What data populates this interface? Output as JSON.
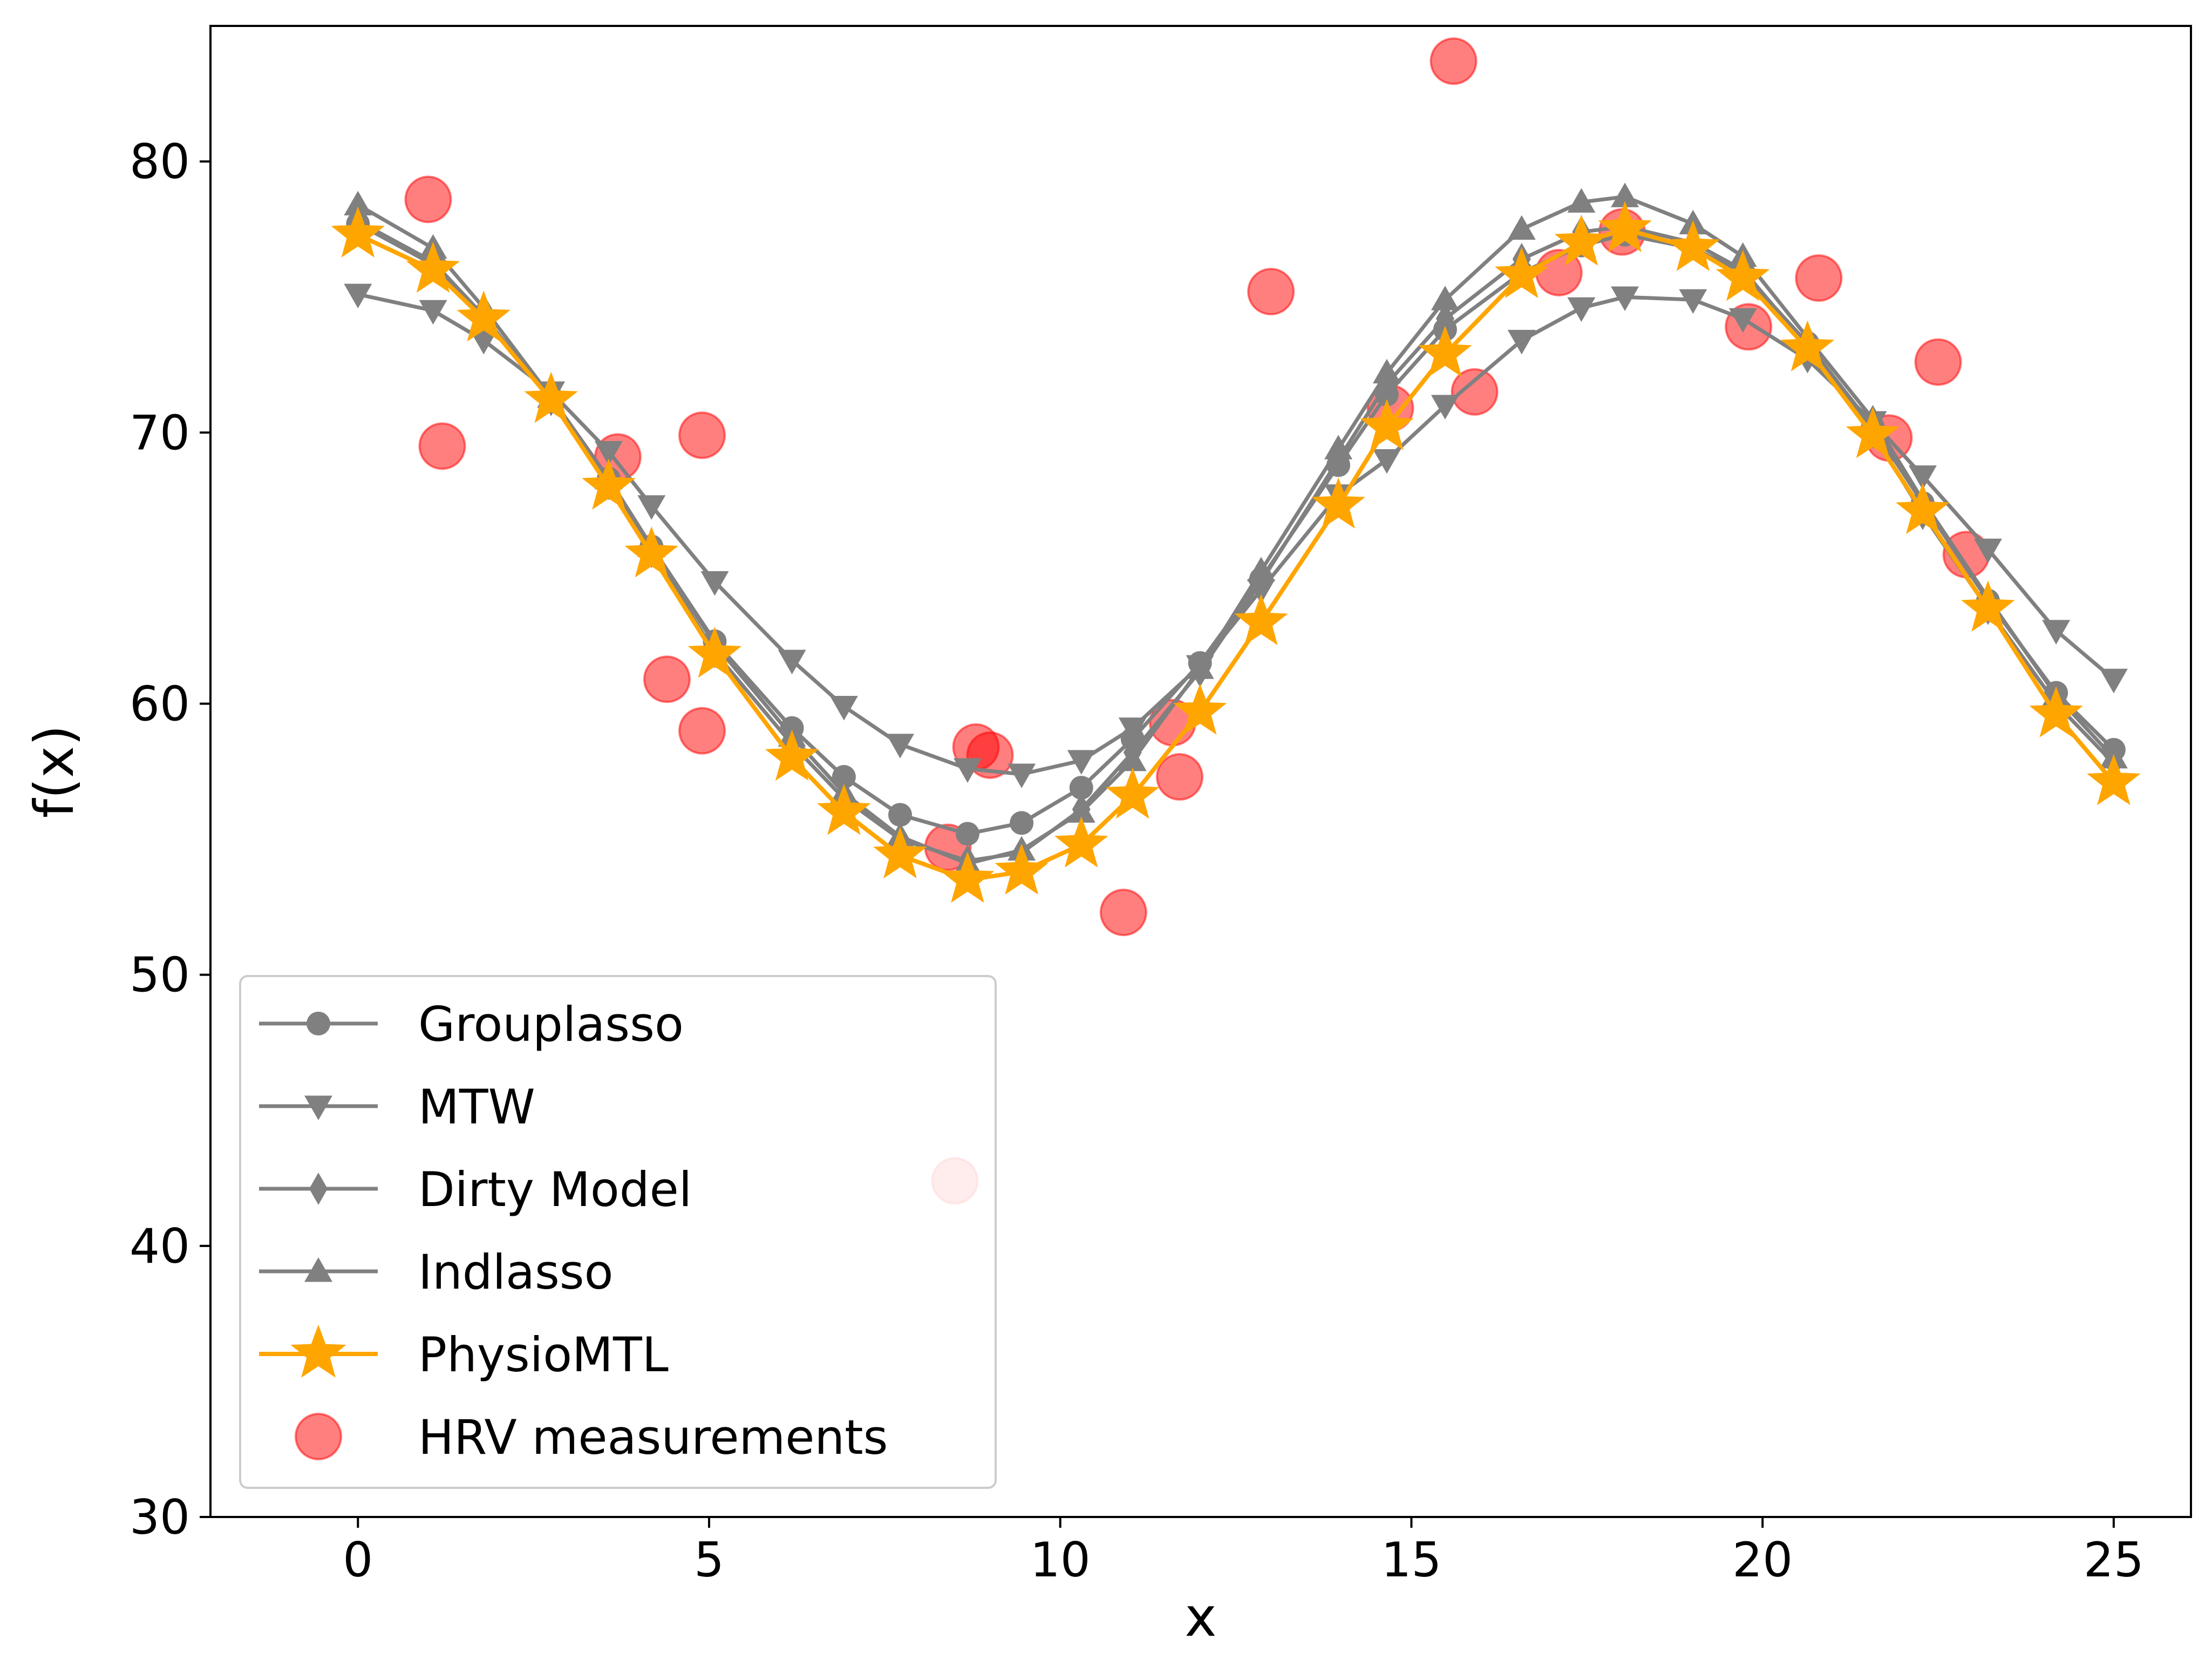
{
  "chart_data": {
    "type": "line",
    "title": "",
    "xlabel": "x",
    "ylabel": "f(x)",
    "xlim": [
      -2.1,
      26.1
    ],
    "ylim": [
      30,
      85
    ],
    "xticks": [
      0,
      5,
      10,
      15,
      20,
      25
    ],
    "yticks": [
      30,
      40,
      50,
      60,
      70,
      80
    ],
    "grid": false,
    "legend_position": "lower-left",
    "x": [
      0,
      1.07,
      1.79,
      2.75,
      3.57,
      4.18,
      5.08,
      6.18,
      6.92,
      7.72,
      8.68,
      9.45,
      10.3,
      11.03,
      11.99,
      12.86,
      13.96,
      14.65,
      15.48,
      16.57,
      17.42,
      18.04,
      19.01,
      19.72,
      20.64,
      21.57,
      22.28,
      23.21,
      24.18,
      25.0
    ],
    "series": [
      {
        "name": "Grouplasso",
        "marker": "circle",
        "color": "#808080",
        "values": [
          77.7,
          76.2,
          74.2,
          71.3,
          68.3,
          65.8,
          62.3,
          59.1,
          57.3,
          55.9,
          55.2,
          55.6,
          56.9,
          58.7,
          61.5,
          64.6,
          68.8,
          71.4,
          73.8,
          75.9,
          76.9,
          77.3,
          76.8,
          75.9,
          73.3,
          70.2,
          67.4,
          63.8,
          60.4,
          58.3
        ]
      },
      {
        "name": "MTW",
        "marker": "triangle-down",
        "color": "#808080",
        "values": [
          75.1,
          74.5,
          73.4,
          71.5,
          69.3,
          67.3,
          64.5,
          61.6,
          59.9,
          58.5,
          57.6,
          57.4,
          57.9,
          59.1,
          61.4,
          64.2,
          67.7,
          69.0,
          71.0,
          73.4,
          74.6,
          75.0,
          74.9,
          74.2,
          72.7,
          70.4,
          68.4,
          65.7,
          62.7,
          60.9
        ]
      },
      {
        "name": "Dirty Model",
        "marker": "diamond",
        "color": "#808080",
        "values": [
          77.8,
          76.3,
          74.3,
          71.2,
          68.1,
          65.6,
          61.9,
          58.5,
          56.5,
          55.0,
          54.2,
          54.5,
          56.1,
          58.2,
          61.2,
          64.5,
          69.0,
          71.8,
          74.2,
          76.4,
          77.4,
          77.6,
          77.0,
          76.0,
          73.2,
          70.0,
          67.0,
          63.5,
          60.0,
          57.8
        ]
      },
      {
        "name": "Indlasso",
        "marker": "triangle-up",
        "color": "#808080",
        "values": [
          78.4,
          76.8,
          74.6,
          71.3,
          68.3,
          65.8,
          62.2,
          58.8,
          56.7,
          55.1,
          54.1,
          54.6,
          56.0,
          57.9,
          61.3,
          64.9,
          69.4,
          72.2,
          74.9,
          77.5,
          78.5,
          78.7,
          77.7,
          76.5,
          73.5,
          70.5,
          67.5,
          63.9,
          60.3,
          58.0
        ]
      },
      {
        "name": "PhysioMTL",
        "marker": "star",
        "color": "#FFA500",
        "values": [
          77.3,
          76.0,
          74.2,
          71.2,
          68.0,
          65.5,
          61.8,
          58.0,
          56.0,
          54.4,
          53.5,
          53.8,
          54.8,
          56.6,
          59.7,
          63.0,
          67.3,
          70.2,
          72.9,
          75.8,
          77.0,
          77.5,
          76.8,
          75.7,
          73.1,
          69.9,
          67.1,
          63.5,
          59.6,
          57.1
        ]
      }
    ],
    "scatter": {
      "name": "HRV measurements",
      "color": "#FF0000",
      "points": [
        [
          1.0,
          78.6
        ],
        [
          1.2,
          69.5
        ],
        [
          3.7,
          69.1
        ],
        [
          4.4,
          60.9
        ],
        [
          4.9,
          59.0
        ],
        [
          4.9,
          69.9
        ],
        [
          8.4,
          54.7
        ],
        [
          8.5,
          42.4
        ],
        [
          8.8,
          58.4
        ],
        [
          9.0,
          58.1
        ],
        [
          10.9,
          52.3
        ],
        [
          11.6,
          59.3
        ],
        [
          11.7,
          57.3
        ],
        [
          13.0,
          75.2
        ],
        [
          14.7,
          70.9
        ],
        [
          15.6,
          83.7
        ],
        [
          15.9,
          71.5
        ],
        [
          17.1,
          75.9
        ],
        [
          18.0,
          77.4
        ],
        [
          19.8,
          73.9
        ],
        [
          20.8,
          75.7
        ],
        [
          21.8,
          69.8
        ],
        [
          22.5,
          72.6
        ],
        [
          22.9,
          65.5
        ]
      ]
    }
  }
}
